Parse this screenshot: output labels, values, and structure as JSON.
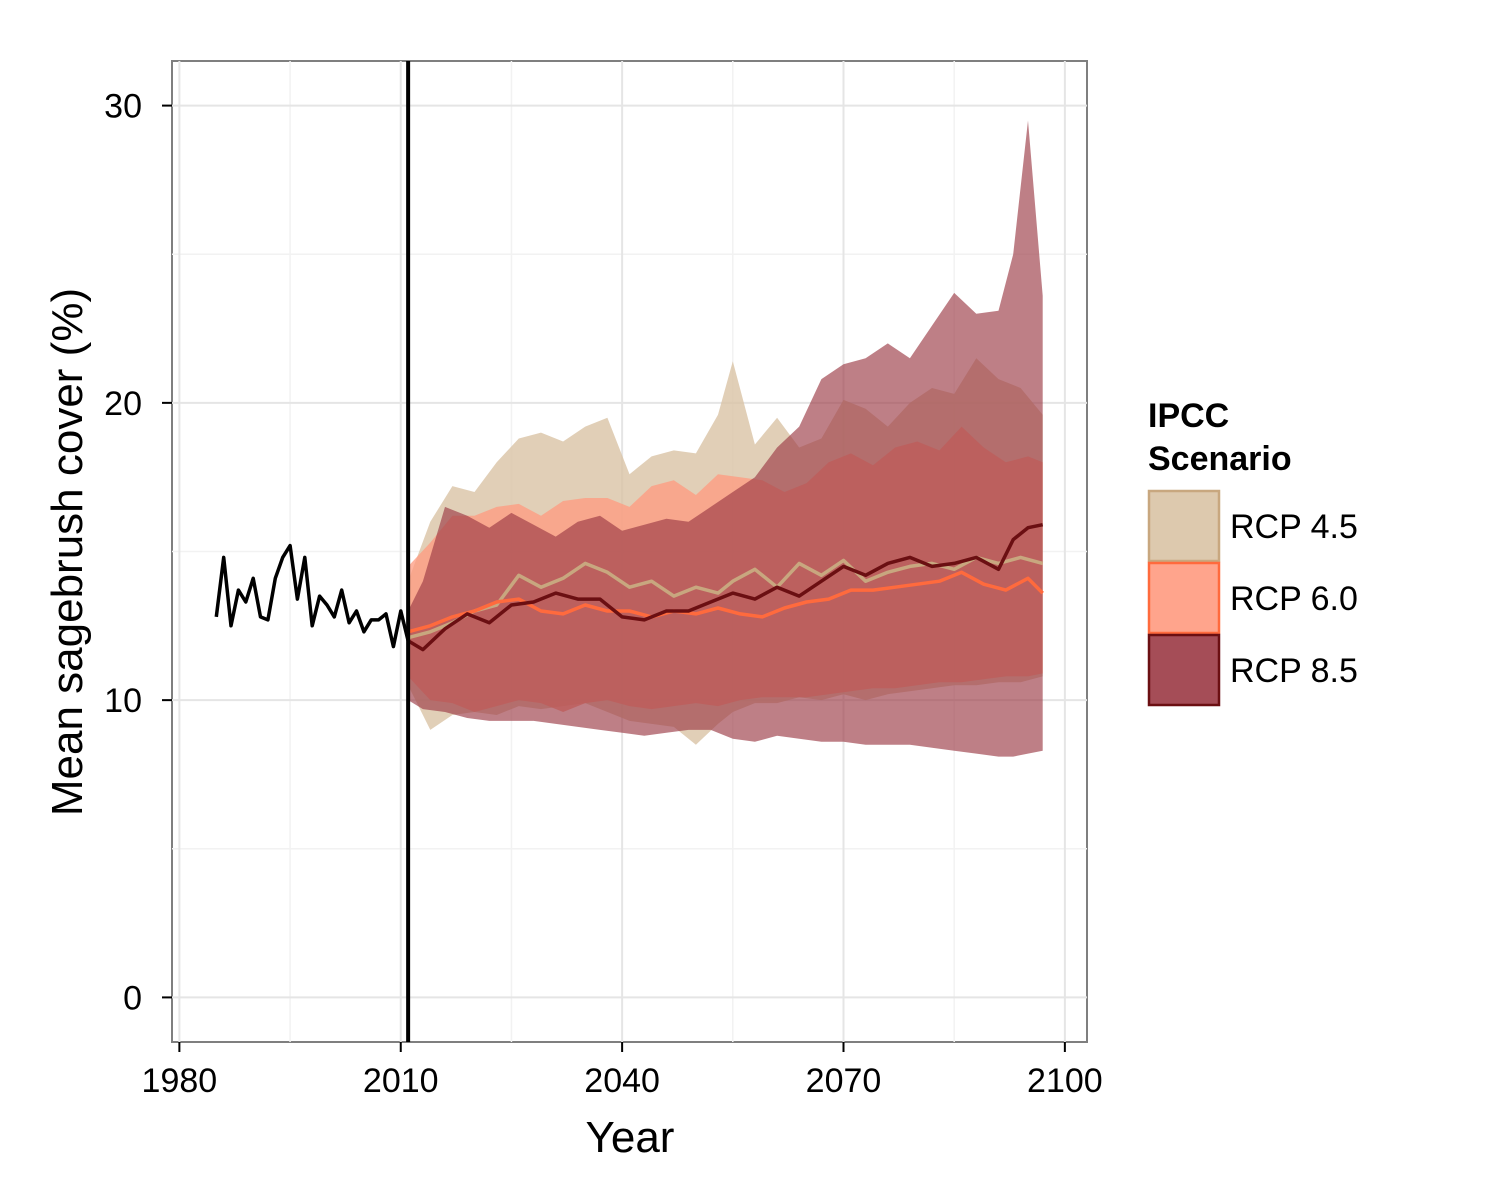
{
  "chart_data": {
    "type": "line",
    "xlabel": "Year",
    "ylabel": "Mean sagebrush cover (%)",
    "xlim": [
      1979,
      2103
    ],
    "ylim": [
      -1.5,
      31.5
    ],
    "x_ticks": [
      1980,
      2010,
      2040,
      2070,
      2100
    ],
    "x_tick_labels": [
      "1980",
      "2010",
      "2040",
      "2070",
      "2100"
    ],
    "y_ticks": [
      0,
      10,
      20,
      30
    ],
    "y_tick_labels": [
      "0",
      "10",
      "20",
      "30"
    ],
    "grid": true,
    "vertical_reference_line": 2011,
    "legend": {
      "title_lines": [
        "IPCC",
        "Scenario"
      ],
      "placement": "right",
      "entries": [
        {
          "label": "RCP 4.5",
          "fill": "#d9c3a5",
          "line": "#c8a77f"
        },
        {
          "label": "RCP 6.0",
          "fill": "#ff9a7f",
          "line": "#ff6a3d"
        },
        {
          "label": "RCP 8.5",
          "fill": "#9b3a45",
          "line": "#6b0f12"
        }
      ]
    },
    "historical": {
      "color": "#000000",
      "x": [
        1985,
        1986,
        1987,
        1988,
        1989,
        1990,
        1991,
        1992,
        1993,
        1994,
        1995,
        1996,
        1997,
        1998,
        1999,
        2000,
        2001,
        2002,
        2003,
        2004,
        2005,
        2006,
        2007,
        2008,
        2009,
        2010,
        2011
      ],
      "y": [
        12.8,
        14.8,
        12.5,
        13.7,
        13.3,
        14.1,
        12.8,
        12.7,
        14.1,
        14.8,
        15.2,
        13.4,
        14.8,
        12.5,
        13.5,
        13.2,
        12.8,
        13.7,
        12.6,
        13.0,
        12.3,
        12.7,
        12.7,
        12.9,
        11.8,
        13.0,
        12.0
      ]
    },
    "series": [
      {
        "name": "RCP 4.5",
        "color": "#c8a77f",
        "band_color": "#d9c3a5",
        "band_opacity": 0.8,
        "x": [
          2011,
          2014,
          2017,
          2020,
          2023,
          2026,
          2029,
          2032,
          2035,
          2038,
          2041,
          2044,
          2047,
          2050,
          2053,
          2055,
          2058,
          2061,
          2064,
          2067,
          2070,
          2073,
          2076,
          2079,
          2082,
          2085,
          2088,
          2091,
          2094,
          2097
        ],
        "y": [
          12.1,
          12.3,
          12.6,
          13.0,
          13.2,
          14.2,
          13.8,
          14.1,
          14.6,
          14.3,
          13.8,
          14.0,
          13.5,
          13.8,
          13.6,
          14.0,
          14.4,
          13.8,
          14.6,
          14.2,
          14.7,
          14.0,
          14.3,
          14.5,
          14.6,
          14.4,
          14.8,
          14.6,
          14.8,
          14.6
        ],
        "upper": [
          14.0,
          16.0,
          17.2,
          17.0,
          18.0,
          18.8,
          19.0,
          18.7,
          19.2,
          19.5,
          17.6,
          18.2,
          18.4,
          18.3,
          19.6,
          21.4,
          18.6,
          19.5,
          18.5,
          18.8,
          20.1,
          19.8,
          19.2,
          20.0,
          20.5,
          20.3,
          21.5,
          20.8,
          20.5,
          19.6
        ],
        "lower": [
          10.5,
          9.0,
          9.5,
          9.6,
          9.5,
          9.8,
          9.7,
          9.8,
          9.9,
          9.6,
          9.3,
          9.2,
          9.1,
          8.5,
          9.2,
          9.6,
          9.9,
          9.9,
          10.1,
          10.0,
          10.2,
          10.0,
          10.2,
          10.3,
          10.4,
          10.5,
          10.5,
          10.6,
          10.6,
          10.8
        ]
      },
      {
        "name": "RCP 6.0",
        "color": "#ff6a3d",
        "band_color": "#ff9a7f",
        "band_opacity": 0.75,
        "x": [
          2011,
          2014,
          2017,
          2020,
          2023,
          2026,
          2029,
          2032,
          2035,
          2038,
          2041,
          2044,
          2047,
          2050,
          2053,
          2056,
          2059,
          2062,
          2065,
          2068,
          2071,
          2074,
          2077,
          2080,
          2083,
          2086,
          2089,
          2092,
          2095,
          2097
        ],
        "y": [
          12.3,
          12.5,
          12.8,
          13.0,
          13.3,
          13.4,
          13.0,
          12.9,
          13.2,
          13.0,
          13.0,
          12.8,
          13.0,
          12.9,
          13.1,
          12.9,
          12.8,
          13.1,
          13.3,
          13.4,
          13.7,
          13.7,
          13.8,
          13.9,
          14.0,
          14.3,
          13.9,
          13.7,
          14.1,
          13.6
        ],
        "upper": [
          14.5,
          15.3,
          16.2,
          16.2,
          16.5,
          16.6,
          16.2,
          16.7,
          16.8,
          16.8,
          16.5,
          17.2,
          17.4,
          16.9,
          17.6,
          17.5,
          17.4,
          17.0,
          17.3,
          18.0,
          18.3,
          17.9,
          18.5,
          18.7,
          18.4,
          19.2,
          18.5,
          18.0,
          18.2,
          18.0
        ],
        "lower": [
          10.8,
          10.0,
          9.9,
          9.6,
          9.8,
          10.0,
          9.9,
          9.6,
          9.9,
          10.0,
          9.8,
          9.7,
          9.8,
          9.9,
          9.8,
          10.0,
          10.1,
          10.1,
          10.1,
          10.2,
          10.3,
          10.4,
          10.4,
          10.5,
          10.6,
          10.6,
          10.7,
          10.8,
          10.8,
          10.9
        ]
      },
      {
        "name": "RCP 8.5",
        "color": "#6b0f12",
        "band_color": "#9b3a45",
        "band_opacity": 0.65,
        "x": [
          2011,
          2013,
          2016,
          2019,
          2022,
          2025,
          2028,
          2031,
          2034,
          2037,
          2040,
          2043,
          2046,
          2049,
          2052,
          2055,
          2058,
          2061,
          2064,
          2067,
          2070,
          2073,
          2076,
          2079,
          2082,
          2085,
          2088,
          2091,
          2093,
          2095,
          2097
        ],
        "y": [
          12.0,
          11.7,
          12.4,
          12.9,
          12.6,
          13.2,
          13.3,
          13.6,
          13.4,
          13.4,
          12.8,
          12.7,
          13.0,
          13.0,
          13.3,
          13.6,
          13.4,
          13.8,
          13.5,
          14.0,
          14.5,
          14.2,
          14.6,
          14.8,
          14.5,
          14.6,
          14.8,
          14.4,
          15.4,
          15.8,
          15.9
        ],
        "upper": [
          13.0,
          14.0,
          16.5,
          16.2,
          15.8,
          16.3,
          15.9,
          15.5,
          16.0,
          16.2,
          15.7,
          15.9,
          16.1,
          16.0,
          16.5,
          17.0,
          17.5,
          18.5,
          19.2,
          20.8,
          21.3,
          21.5,
          22.0,
          21.5,
          22.6,
          23.7,
          23.0,
          23.1,
          25.0,
          29.5,
          23.6
        ],
        "lower": [
          10.0,
          9.7,
          9.6,
          9.4,
          9.3,
          9.3,
          9.3,
          9.2,
          9.1,
          9.0,
          8.9,
          8.8,
          8.9,
          9.0,
          9.0,
          8.7,
          8.6,
          8.8,
          8.7,
          8.6,
          8.6,
          8.5,
          8.5,
          8.5,
          8.4,
          8.3,
          8.2,
          8.1,
          8.1,
          8.2,
          8.3
        ]
      }
    ]
  }
}
